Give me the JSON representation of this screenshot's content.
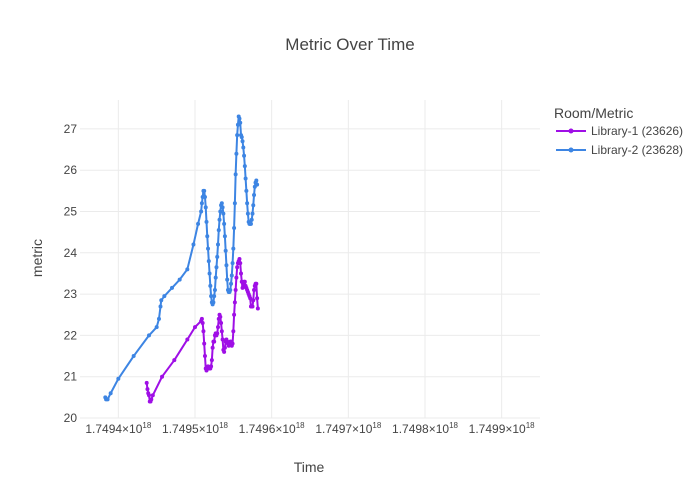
{
  "chart_data": {
    "type": "line",
    "title": "Metric Over Time",
    "xlabel": "Time",
    "ylabel": "metric",
    "xlim": [
      1.74935e+18,
      1.74995e+18
    ],
    "ylim": [
      20,
      27.7
    ],
    "x_ticks": [
      1.7494e+18,
      1.7495e+18,
      1.7496e+18,
      1.7497e+18,
      1.7498e+18,
      1.7499e+18
    ],
    "x_tick_labels": [
      {
        "mant": "1.7494×10",
        "exp": "18"
      },
      {
        "mant": "1.7495×10",
        "exp": "18"
      },
      {
        "mant": "1.7496×10",
        "exp": "18"
      },
      {
        "mant": "1.7497×10",
        "exp": "18"
      },
      {
        "mant": "1.7498×10",
        "exp": "18"
      },
      {
        "mant": "1.7499×10",
        "exp": "18"
      }
    ],
    "y_ticks": [
      20,
      21,
      22,
      23,
      24,
      25,
      26,
      27
    ],
    "grid": true,
    "legend": {
      "title": "Room/Metric",
      "position": "top-right"
    },
    "series": [
      {
        "name": "Library-1 (23626)",
        "color": "#9f0fe6",
        "points": [
          [
            1.749437e+18,
            20.85
          ],
          [
            1.749438e+18,
            20.7
          ],
          [
            1.749439e+18,
            20.6
          ],
          [
            1.74944e+18,
            20.55
          ],
          [
            1.749441e+18,
            20.4
          ],
          [
            1.749442e+18,
            20.4
          ],
          [
            1.749443e+18,
            20.45
          ],
          [
            1.749445e+18,
            20.55
          ],
          [
            1.749457e+18,
            21.0
          ],
          [
            1.749473e+18,
            21.4
          ],
          [
            1.74949e+18,
            21.9
          ],
          [
            1.7495e+18,
            22.2
          ],
          [
            1.749508e+18,
            22.35
          ],
          [
            1.749509e+18,
            22.4
          ],
          [
            1.74951e+18,
            22.3
          ],
          [
            1.749511e+18,
            22.1
          ],
          [
            1.749512e+18,
            21.8
          ],
          [
            1.749513e+18,
            21.5
          ],
          [
            1.749514e+18,
            21.2
          ],
          [
            1.749515e+18,
            21.15
          ],
          [
            1.749516e+18,
            21.2
          ],
          [
            1.749517e+18,
            21.25
          ],
          [
            1.749518e+18,
            21.2
          ],
          [
            1.749519e+18,
            21.2
          ],
          [
            1.74952e+18,
            21.2
          ],
          [
            1.749521e+18,
            21.25
          ],
          [
            1.749522e+18,
            21.4
          ],
          [
            1.749523e+18,
            21.7
          ],
          [
            1.749524e+18,
            21.85
          ],
          [
            1.749525e+18,
            21.85
          ],
          [
            1.749526e+18,
            22.0
          ],
          [
            1.749527e+18,
            22.05
          ],
          [
            1.749528e+18,
            22.0
          ],
          [
            1.749529e+18,
            22.05
          ],
          [
            1.74953e+18,
            22.2
          ],
          [
            1.749531e+18,
            22.4
          ],
          [
            1.749532e+18,
            22.5
          ],
          [
            1.749533e+18,
            22.45
          ],
          [
            1.749534e+18,
            22.3
          ],
          [
            1.749535e+18,
            22.1
          ],
          [
            1.749536e+18,
            21.9
          ],
          [
            1.749537e+18,
            21.65
          ],
          [
            1.749538e+18,
            21.6
          ],
          [
            1.749539e+18,
            21.7
          ],
          [
            1.74954e+18,
            21.85
          ],
          [
            1.749541e+18,
            21.9
          ],
          [
            1.749542e+18,
            21.85
          ],
          [
            1.749543e+18,
            21.8
          ],
          [
            1.749544e+18,
            21.75
          ],
          [
            1.749545e+18,
            21.8
          ],
          [
            1.749546e+18,
            21.85
          ],
          [
            1.749547e+18,
            21.85
          ],
          [
            1.749548e+18,
            21.75
          ],
          [
            1.749549e+18,
            21.8
          ],
          [
            1.74955e+18,
            22.1
          ],
          [
            1.749551e+18,
            22.5
          ],
          [
            1.749552e+18,
            22.8
          ],
          [
            1.749553e+18,
            23.1
          ],
          [
            1.749554e+18,
            23.4
          ],
          [
            1.749555e+18,
            23.65
          ],
          [
            1.749556e+18,
            23.75
          ],
          [
            1.749557e+18,
            23.8
          ],
          [
            1.749558e+18,
            23.85
          ],
          [
            1.749559e+18,
            23.75
          ],
          [
            1.74956e+18,
            23.5
          ],
          [
            1.749561e+18,
            23.3
          ],
          [
            1.749562e+18,
            23.15
          ],
          [
            1.749563e+18,
            23.2
          ],
          [
            1.749564e+18,
            23.3
          ],
          [
            1.749565e+18,
            23.3
          ],
          [
            1.749566e+18,
            23.2
          ],
          [
            1.749567e+18,
            23.15
          ],
          [
            1.749568e+18,
            23.1
          ],
          [
            1.749569e+18,
            23.05
          ],
          [
            1.74957e+18,
            23.0
          ],
          [
            1.749571e+18,
            22.95
          ],
          [
            1.749572e+18,
            22.9
          ],
          [
            1.749573e+18,
            22.7
          ],
          [
            1.749574e+18,
            22.7
          ],
          [
            1.749575e+18,
            22.7
          ],
          [
            1.749576e+18,
            22.85
          ],
          [
            1.749577e+18,
            23.1
          ],
          [
            1.749578e+18,
            23.2
          ],
          [
            1.749579e+18,
            23.25
          ],
          [
            1.74958e+18,
            23.25
          ],
          [
            1.749581e+18,
            22.9
          ],
          [
            1.749582e+18,
            22.65
          ]
        ]
      },
      {
        "name": "Library-2 (23628)",
        "color": "#3d85e3",
        "points": [
          [
            1.749383e+18,
            20.5
          ],
          [
            1.749384e+18,
            20.45
          ],
          [
            1.749386e+18,
            20.45
          ],
          [
            1.74939e+18,
            20.6
          ],
          [
            1.7494e+18,
            20.95
          ],
          [
            1.74942e+18,
            21.5
          ],
          [
            1.74944e+18,
            22.0
          ],
          [
            1.74945e+18,
            22.2
          ],
          [
            1.749453e+18,
            22.4
          ],
          [
            1.749455e+18,
            22.7
          ],
          [
            1.749456e+18,
            22.85
          ],
          [
            1.74946e+18,
            22.95
          ],
          [
            1.74947e+18,
            23.15
          ],
          [
            1.74948e+18,
            23.35
          ],
          [
            1.74949e+18,
            23.6
          ],
          [
            1.749498e+18,
            24.2
          ],
          [
            1.749504e+18,
            24.7
          ],
          [
            1.749508e+18,
            25.0
          ],
          [
            1.749509e+18,
            25.2
          ],
          [
            1.74951e+18,
            25.35
          ],
          [
            1.749511e+18,
            25.5
          ],
          [
            1.749512e+18,
            25.5
          ],
          [
            1.749513e+18,
            25.35
          ],
          [
            1.749514e+18,
            25.1
          ],
          [
            1.749515e+18,
            24.75
          ],
          [
            1.749516e+18,
            24.4
          ],
          [
            1.749517e+18,
            24.1
          ],
          [
            1.749518e+18,
            23.8
          ],
          [
            1.749519e+18,
            23.5
          ],
          [
            1.74952e+18,
            23.2
          ],
          [
            1.749521e+18,
            22.95
          ],
          [
            1.749522e+18,
            22.8
          ],
          [
            1.749523e+18,
            22.75
          ],
          [
            1.749524e+18,
            22.8
          ],
          [
            1.749525e+18,
            22.95
          ],
          [
            1.749526e+18,
            23.1
          ],
          [
            1.749527e+18,
            23.4
          ],
          [
            1.749528e+18,
            23.65
          ],
          [
            1.749529e+18,
            23.9
          ],
          [
            1.74953e+18,
            24.2
          ],
          [
            1.749531e+18,
            24.55
          ],
          [
            1.749532e+18,
            24.8
          ],
          [
            1.749533e+18,
            25.0
          ],
          [
            1.749534e+18,
            25.15
          ],
          [
            1.749535e+18,
            25.2
          ],
          [
            1.749536e+18,
            25.1
          ],
          [
            1.749537e+18,
            24.95
          ],
          [
            1.749538e+18,
            24.7
          ],
          [
            1.749539e+18,
            24.4
          ],
          [
            1.74954e+18,
            24.05
          ],
          [
            1.749541e+18,
            23.7
          ],
          [
            1.749542e+18,
            23.35
          ],
          [
            1.749543e+18,
            23.1
          ],
          [
            1.749544e+18,
            23.05
          ],
          [
            1.749545e+18,
            23.05
          ],
          [
            1.749546e+18,
            23.1
          ],
          [
            1.749547e+18,
            23.25
          ],
          [
            1.749548e+18,
            23.45
          ],
          [
            1.749549e+18,
            23.75
          ],
          [
            1.74955e+18,
            24.1
          ],
          [
            1.749551e+18,
            24.6
          ],
          [
            1.749552e+18,
            25.2
          ],
          [
            1.749553e+18,
            25.9
          ],
          [
            1.749554e+18,
            26.4
          ],
          [
            1.749555e+18,
            26.85
          ],
          [
            1.749556e+18,
            27.1
          ],
          [
            1.749557e+18,
            27.3
          ],
          [
            1.749558e+18,
            27.25
          ],
          [
            1.749559e+18,
            27.15
          ],
          [
            1.74956e+18,
            26.85
          ],
          [
            1.749561e+18,
            26.8
          ],
          [
            1.749562e+18,
            26.7
          ],
          [
            1.749563e+18,
            26.55
          ],
          [
            1.749564e+18,
            26.35
          ],
          [
            1.749565e+18,
            26.1
          ],
          [
            1.749566e+18,
            25.8
          ],
          [
            1.749567e+18,
            25.5
          ],
          [
            1.749568e+18,
            25.2
          ],
          [
            1.749569e+18,
            24.95
          ],
          [
            1.74957e+18,
            24.75
          ],
          [
            1.749571e+18,
            24.7
          ],
          [
            1.749572e+18,
            24.7
          ],
          [
            1.749573e+18,
            24.7
          ],
          [
            1.749574e+18,
            24.8
          ],
          [
            1.749575e+18,
            24.95
          ],
          [
            1.749576e+18,
            25.15
          ],
          [
            1.749577e+18,
            25.4
          ],
          [
            1.749578e+18,
            25.6
          ],
          [
            1.749579e+18,
            25.7
          ],
          [
            1.74958e+18,
            25.75
          ],
          [
            1.749581e+18,
            25.65
          ]
        ]
      }
    ]
  }
}
